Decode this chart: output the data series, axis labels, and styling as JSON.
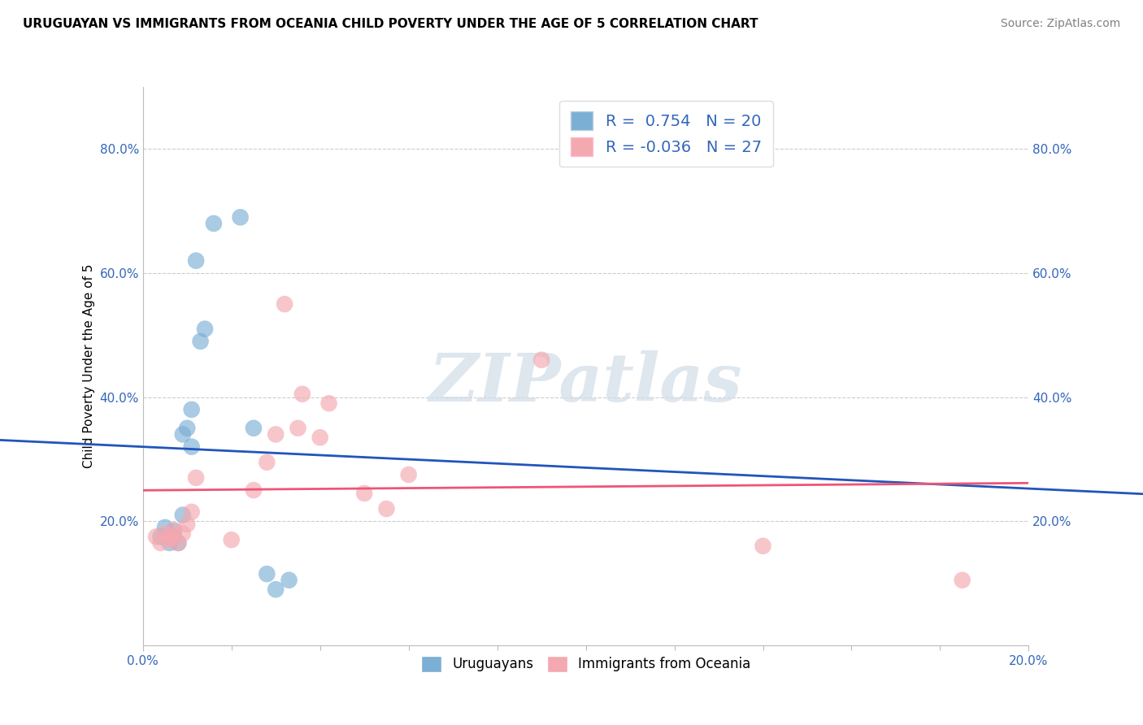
{
  "title": "URUGUAYAN VS IMMIGRANTS FROM OCEANIA CHILD POVERTY UNDER THE AGE OF 5 CORRELATION CHART",
  "source": "Source: ZipAtlas.com",
  "ylabel": "Child Poverty Under the Age of 5",
  "xlim": [
    0.0,
    0.2
  ],
  "ylim": [
    0.0,
    0.9
  ],
  "yticks": [
    0.2,
    0.4,
    0.6,
    0.8
  ],
  "ytick_labels": [
    "20.0%",
    "40.0%",
    "60.0%",
    "80.0%"
  ],
  "xticks": [
    0.0,
    0.2
  ],
  "xtick_labels": [
    "0.0%",
    "20.0%"
  ],
  "x_minor_ticks": [
    0.02,
    0.04,
    0.06,
    0.08,
    0.1,
    0.12,
    0.14,
    0.16,
    0.18
  ],
  "legend_uruguayan_R": "0.754",
  "legend_uruguayan_N": "20",
  "legend_oceania_R": "-0.036",
  "legend_oceania_N": "27",
  "uruguayan_color": "#7BAFD4",
  "oceania_color": "#F4A8B0",
  "line_uruguayan_color": "#2255BB",
  "line_oceania_color": "#EE5577",
  "uruguayan_x": [
    0.004,
    0.005,
    0.006,
    0.007,
    0.007,
    0.008,
    0.009,
    0.009,
    0.01,
    0.011,
    0.011,
    0.012,
    0.013,
    0.014,
    0.016,
    0.022,
    0.025,
    0.028,
    0.03,
    0.033
  ],
  "uruguayan_y": [
    0.175,
    0.19,
    0.165,
    0.185,
    0.175,
    0.165,
    0.21,
    0.34,
    0.35,
    0.32,
    0.38,
    0.62,
    0.49,
    0.51,
    0.68,
    0.69,
    0.35,
    0.115,
    0.09,
    0.105
  ],
  "oceania_x": [
    0.003,
    0.004,
    0.005,
    0.006,
    0.006,
    0.007,
    0.007,
    0.008,
    0.009,
    0.01,
    0.011,
    0.012,
    0.02,
    0.025,
    0.028,
    0.03,
    0.032,
    0.035,
    0.036,
    0.04,
    0.042,
    0.05,
    0.055,
    0.06,
    0.09,
    0.14,
    0.185
  ],
  "oceania_y": [
    0.175,
    0.165,
    0.18,
    0.17,
    0.175,
    0.185,
    0.175,
    0.165,
    0.18,
    0.195,
    0.215,
    0.27,
    0.17,
    0.25,
    0.295,
    0.34,
    0.55,
    0.35,
    0.405,
    0.335,
    0.39,
    0.245,
    0.22,
    0.275,
    0.46,
    0.16,
    0.105
  ],
  "line_u_x0": -0.002,
  "line_u_x1": 0.038,
  "line_o_x0": 0.0,
  "line_o_x1": 0.2,
  "title_fontsize": 11,
  "label_fontsize": 11,
  "tick_fontsize": 11,
  "legend_fontsize": 14,
  "source_fontsize": 10,
  "watermark_text": "ZIPatlas"
}
